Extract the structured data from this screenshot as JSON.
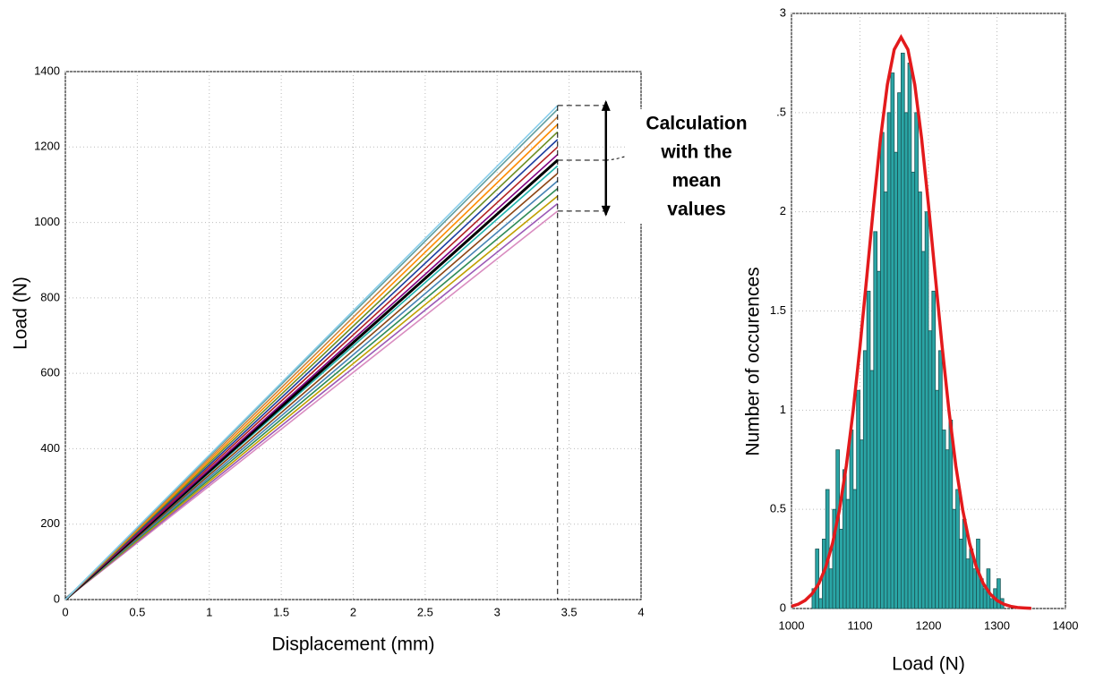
{
  "chart_data": [
    {
      "type": "line",
      "xlabel": "Displacement (mm)",
      "ylabel": "Load (N)",
      "x": [
        0,
        3.42
      ],
      "series": [
        {
          "color": "#d98cc0",
          "values": [
            0,
            1030
          ]
        },
        {
          "color": "#9b59b6",
          "values": [
            0,
            1050
          ]
        },
        {
          "color": "#c0a000",
          "values": [
            0,
            1070
          ]
        },
        {
          "color": "#2e8b57",
          "values": [
            0,
            1090
          ]
        },
        {
          "color": "#4682b4",
          "values": [
            0,
            1110
          ]
        },
        {
          "color": "#8b4513",
          "values": [
            0,
            1130
          ]
        },
        {
          "color": "#20b2aa",
          "values": [
            0,
            1150
          ]
        },
        {
          "color": "#000000",
          "values": [
            0,
            1165
          ]
        },
        {
          "color": "#800080",
          "values": [
            0,
            1180
          ]
        },
        {
          "color": "#b22222",
          "values": [
            0,
            1200
          ]
        },
        {
          "color": "#1e3fa0",
          "values": [
            0,
            1220
          ]
        },
        {
          "color": "#6b8e23",
          "values": [
            0,
            1240
          ]
        },
        {
          "color": "#ff8c00",
          "values": [
            0,
            1260
          ]
        },
        {
          "color": "#cd853f",
          "values": [
            0,
            1280
          ]
        },
        {
          "color": "#5f9ea0",
          "values": [
            0,
            1300
          ]
        },
        {
          "color": "#87ceeb",
          "values": [
            0,
            1310
          ]
        }
      ],
      "reference": {
        "x": 3.42,
        "y": [
          1030,
          1165,
          1310
        ]
      },
      "annotation": [
        "Calculation",
        "with the",
        "mean",
        "values"
      ],
      "xlim": [
        0,
        4
      ],
      "xticks": [
        0,
        0.5,
        1,
        1.5,
        2,
        2.5,
        3,
        3.5,
        4
      ],
      "ylim": [
        0,
        1400
      ],
      "yticks": [
        0,
        200,
        400,
        600,
        800,
        1000,
        1200,
        1400
      ],
      "grid": true
    },
    {
      "type": "histogram",
      "xlabel": "Load (N)",
      "ylabel": "Number of occurences",
      "color": "#2aa5a5",
      "edgecolor": "#1b5556",
      "bins": [
        1030,
        1035,
        1040,
        1045,
        1050,
        1055,
        1060,
        1065,
        1070,
        1075,
        1080,
        1085,
        1090,
        1095,
        1100,
        1105,
        1110,
        1115,
        1120,
        1125,
        1130,
        1135,
        1140,
        1145,
        1150,
        1155,
        1160,
        1165,
        1170,
        1175,
        1180,
        1185,
        1190,
        1195,
        1200,
        1205,
        1210,
        1215,
        1220,
        1225,
        1230,
        1235,
        1240,
        1245,
        1250,
        1255,
        1260,
        1265,
        1270,
        1275,
        1280,
        1285,
        1290,
        1295,
        1300,
        1305,
        1310
      ],
      "values": [
        0.1,
        0.3,
        0.05,
        0.35,
        0.6,
        0.2,
        0.5,
        0.8,
        0.4,
        0.7,
        0.55,
        0.9,
        0.6,
        1.1,
        0.85,
        1.3,
        1.6,
        1.2,
        1.9,
        1.7,
        2.4,
        2.1,
        2.5,
        2.7,
        2.3,
        2.6,
        2.8,
        2.5,
        2.75,
        2.2,
        2.5,
        2.1,
        1.8,
        2.0,
        1.4,
        1.6,
        1.1,
        1.3,
        0.9,
        0.8,
        0.95,
        0.5,
        0.6,
        0.35,
        0.45,
        0.25,
        0.3,
        0.2,
        0.35,
        0.15,
        0.1,
        0.2,
        0.05,
        0.1,
        0.15,
        0.05
      ],
      "fit": {
        "color": "#e31a1c",
        "x": [
          1000,
          1010,
          1020,
          1030,
          1040,
          1050,
          1060,
          1070,
          1080,
          1090,
          1100,
          1110,
          1120,
          1130,
          1140,
          1150,
          1160,
          1170,
          1180,
          1190,
          1200,
          1210,
          1220,
          1230,
          1240,
          1250,
          1260,
          1270,
          1280,
          1290,
          1300,
          1310,
          1320,
          1330,
          1340,
          1350
        ],
        "values": [
          0.011,
          0.022,
          0.041,
          0.074,
          0.126,
          0.208,
          0.329,
          0.497,
          0.718,
          0.995,
          1.319,
          1.674,
          2.035,
          2.369,
          2.641,
          2.818,
          2.88,
          2.818,
          2.641,
          2.369,
          2.035,
          1.674,
          1.319,
          0.995,
          0.718,
          0.497,
          0.329,
          0.208,
          0.126,
          0.074,
          0.041,
          0.022,
          0.011,
          0.005,
          0.003,
          0.001
        ]
      },
      "xlim": [
        1000,
        1400
      ],
      "xticks": [
        1000,
        1100,
        1200,
        1300,
        1400
      ],
      "ylim": [
        0,
        3
      ],
      "yticks": [
        0,
        0.5,
        1,
        1.5,
        2,
        {
          "value": 2.5,
          "label": ".5"
        },
        3
      ],
      "grid": true
    }
  ]
}
